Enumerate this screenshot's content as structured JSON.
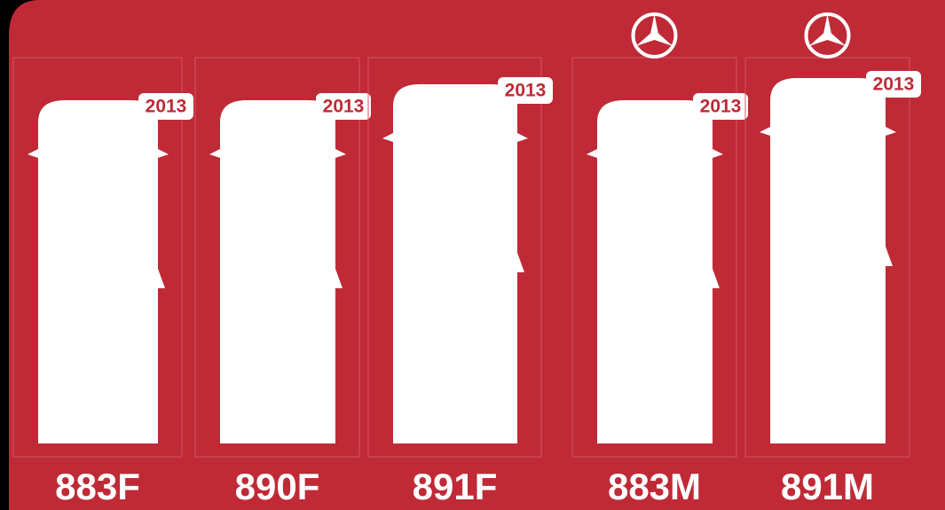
{
  "vehicles": [
    {
      "label": "883F",
      "year": "2013",
      "logo": false
    },
    {
      "label": "890F",
      "year": "2013",
      "logo": false
    },
    {
      "label": "891F",
      "year": "2013",
      "logo": false
    },
    {
      "label": "883M",
      "year": "2013",
      "logo": true
    },
    {
      "label": "891M",
      "year": "2013",
      "logo": true
    }
  ]
}
